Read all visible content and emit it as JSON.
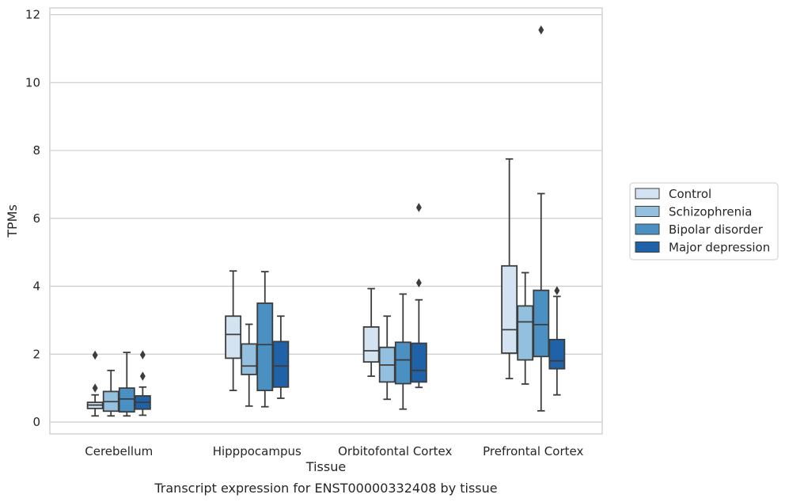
{
  "chart_data": {
    "type": "box",
    "title": "",
    "xlabel": "Tissue",
    "ylabel": "TPMs",
    "caption": "Transcript expression for ENST00000332408 by tissue",
    "ylim": [
      -0.35,
      12.2
    ],
    "yticks": [
      0,
      2,
      4,
      6,
      8,
      10,
      12
    ],
    "grid": true,
    "legend_position": "center-right",
    "categories": [
      "Cerebellum",
      "Hipppocampus",
      "Orbitofontal Cortex",
      "Prefrontal Cortex"
    ],
    "series": [
      {
        "name": "Control",
        "color": "#d3e3f1",
        "boxes": [
          {
            "whislo": 0.18,
            "q1": 0.4,
            "med": 0.5,
            "q3": 0.58,
            "whishi": 0.8,
            "fliers": [
              1.0,
              1.97
            ]
          },
          {
            "whislo": 0.93,
            "q1": 1.88,
            "med": 2.58,
            "q3": 3.12,
            "whishi": 4.45,
            "fliers": []
          },
          {
            "whislo": 1.35,
            "q1": 1.77,
            "med": 2.1,
            "q3": 2.8,
            "whishi": 3.93,
            "fliers": []
          },
          {
            "whislo": 1.28,
            "q1": 2.03,
            "med": 2.72,
            "q3": 4.6,
            "whishi": 7.75,
            "fliers": []
          }
        ]
      },
      {
        "name": "Schizophrenia",
        "color": "#94c0df",
        "boxes": [
          {
            "whislo": 0.18,
            "q1": 0.32,
            "med": 0.6,
            "q3": 0.9,
            "whishi": 1.52,
            "fliers": []
          },
          {
            "whislo": 0.47,
            "q1": 1.4,
            "med": 1.65,
            "q3": 2.3,
            "whishi": 2.88,
            "fliers": []
          },
          {
            "whislo": 0.67,
            "q1": 1.18,
            "med": 1.68,
            "q3": 2.2,
            "whishi": 3.12,
            "fliers": []
          },
          {
            "whislo": 1.12,
            "q1": 1.83,
            "med": 2.95,
            "q3": 3.42,
            "whishi": 4.4,
            "fliers": []
          }
        ]
      },
      {
        "name": "Bipolar disorder",
        "color": "#4a90c2",
        "boxes": [
          {
            "whislo": 0.18,
            "q1": 0.3,
            "med": 0.68,
            "q3": 1.0,
            "whishi": 2.05,
            "fliers": []
          },
          {
            "whislo": 0.45,
            "q1": 0.93,
            "med": 2.28,
            "q3": 3.5,
            "whishi": 4.43,
            "fliers": []
          },
          {
            "whislo": 0.38,
            "q1": 1.13,
            "med": 1.83,
            "q3": 2.35,
            "whishi": 3.77,
            "fliers": []
          },
          {
            "whislo": 0.33,
            "q1": 1.93,
            "med": 2.87,
            "q3": 3.88,
            "whishi": 6.73,
            "fliers": [
              11.55
            ]
          }
        ]
      },
      {
        "name": "Major depression",
        "color": "#1f62a8",
        "boxes": [
          {
            "whislo": 0.2,
            "q1": 0.38,
            "med": 0.58,
            "q3": 0.77,
            "whishi": 1.03,
            "fliers": [
              1.35,
              1.98
            ]
          },
          {
            "whislo": 0.7,
            "q1": 1.03,
            "med": 1.65,
            "q3": 2.37,
            "whishi": 3.12,
            "fliers": []
          },
          {
            "whislo": 1.02,
            "q1": 1.18,
            "med": 1.52,
            "q3": 2.32,
            "whishi": 3.6,
            "fliers": [
              4.1,
              6.32
            ]
          },
          {
            "whislo": 0.8,
            "q1": 1.57,
            "med": 1.8,
            "q3": 2.43,
            "whishi": 3.7,
            "fliers": [
              3.87
            ]
          }
        ]
      }
    ]
  }
}
